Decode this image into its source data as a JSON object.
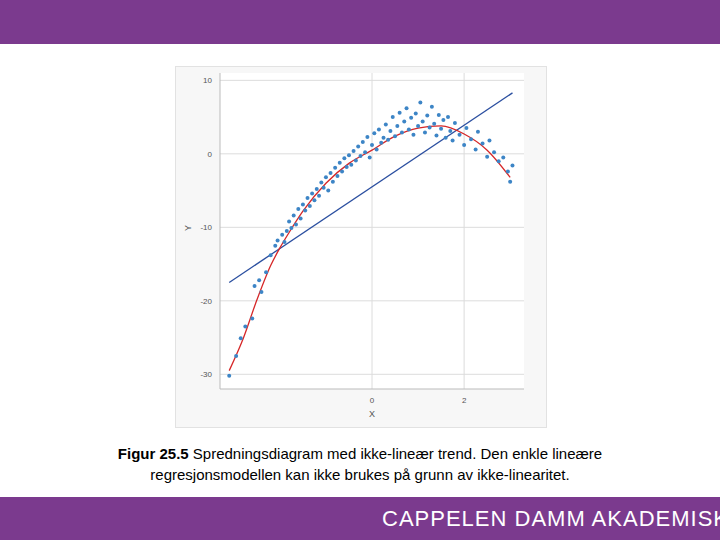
{
  "caption": {
    "label": "Figur 25.5",
    "text": "Spredningsdiagram med ikke-lineær trend. Den enkle lineære regresjonsmodellen kan ikke brukes på grunn av ikke-linearitet."
  },
  "footer": "CAPPELEN DAMM AKADEMISK",
  "chart_data": {
    "type": "scatter",
    "x_label": "X",
    "y_label": "Y",
    "xlim": [
      -3.3,
      3.3
    ],
    "ylim": [
      -32,
      11
    ],
    "xticks": [
      0,
      2
    ],
    "yticks": [
      -30,
      -20,
      -10,
      0,
      10
    ],
    "grid": true,
    "series": [
      {
        "type": "scatter",
        "color": "#3d85c6",
        "marker": "circle",
        "points": [
          [
            -3.1,
            -30.2
          ],
          [
            -2.95,
            -27.5
          ],
          [
            -2.85,
            -25.1
          ],
          [
            -2.75,
            -23.5
          ],
          [
            -2.6,
            -22.4
          ],
          [
            -2.55,
            -18.0
          ],
          [
            -2.45,
            -17.2
          ],
          [
            -2.4,
            -18.8
          ],
          [
            -2.3,
            -16.1
          ],
          [
            -2.2,
            -13.8
          ],
          [
            -2.1,
            -12.5
          ],
          [
            -2.05,
            -11.8
          ],
          [
            -1.95,
            -11.0
          ],
          [
            -1.9,
            -12.0
          ],
          [
            -1.85,
            -10.5
          ],
          [
            -1.8,
            -9.2
          ],
          [
            -1.75,
            -10.1
          ],
          [
            -1.7,
            -8.4
          ],
          [
            -1.65,
            -9.6
          ],
          [
            -1.6,
            -7.5
          ],
          [
            -1.55,
            -8.8
          ],
          [
            -1.5,
            -6.9
          ],
          [
            -1.45,
            -7.7
          ],
          [
            -1.4,
            -6.0
          ],
          [
            -1.35,
            -7.1
          ],
          [
            -1.3,
            -5.4
          ],
          [
            -1.25,
            -6.3
          ],
          [
            -1.2,
            -4.8
          ],
          [
            -1.15,
            -5.7
          ],
          [
            -1.1,
            -3.9
          ],
          [
            -1.05,
            -4.6
          ],
          [
            -1.0,
            -3.2
          ],
          [
            -0.95,
            -5.0
          ],
          [
            -0.9,
            -2.6
          ],
          [
            -0.85,
            -3.8
          ],
          [
            -0.8,
            -1.9
          ],
          [
            -0.75,
            -3.0
          ],
          [
            -0.7,
            -1.2
          ],
          [
            -0.65,
            -2.4
          ],
          [
            -0.6,
            -0.6
          ],
          [
            -0.55,
            -1.8
          ],
          [
            -0.5,
            -0.2
          ],
          [
            -0.45,
            -1.5
          ],
          [
            -0.4,
            0.4
          ],
          [
            -0.35,
            -0.9
          ],
          [
            -0.3,
            1.0
          ],
          [
            -0.25,
            -0.3
          ],
          [
            -0.2,
            1.6
          ],
          [
            -0.15,
            0.2
          ],
          [
            -0.1,
            2.3
          ],
          [
            -0.05,
            -0.5
          ],
          [
            0.0,
            1.2
          ],
          [
            0.05,
            2.8
          ],
          [
            0.1,
            0.6
          ],
          [
            0.15,
            3.3
          ],
          [
            0.2,
            1.5
          ],
          [
            0.25,
            2.2
          ],
          [
            0.3,
            4.0
          ],
          [
            0.35,
            1.9
          ],
          [
            0.4,
            3.1
          ],
          [
            0.45,
            5.0
          ],
          [
            0.5,
            2.4
          ],
          [
            0.55,
            3.8
          ],
          [
            0.6,
            5.6
          ],
          [
            0.65,
            2.9
          ],
          [
            0.7,
            4.4
          ],
          [
            0.75,
            6.2
          ],
          [
            0.8,
            3.3
          ],
          [
            0.85,
            4.9
          ],
          [
            0.9,
            2.6
          ],
          [
            0.95,
            5.5
          ],
          [
            1.0,
            3.8
          ],
          [
            1.05,
            7.0
          ],
          [
            1.1,
            4.4
          ],
          [
            1.15,
            2.9
          ],
          [
            1.2,
            5.2
          ],
          [
            1.25,
            3.6
          ],
          [
            1.3,
            6.4
          ],
          [
            1.35,
            4.1
          ],
          [
            1.4,
            2.5
          ],
          [
            1.45,
            5.3
          ],
          [
            1.5,
            3.4
          ],
          [
            1.55,
            4.6
          ],
          [
            1.6,
            2.2
          ],
          [
            1.65,
            5.0
          ],
          [
            1.7,
            3.1
          ],
          [
            1.75,
            1.8
          ],
          [
            1.8,
            4.2
          ],
          [
            1.9,
            2.6
          ],
          [
            2.0,
            1.2
          ],
          [
            2.05,
            3.5
          ],
          [
            2.15,
            2.0
          ],
          [
            2.25,
            0.6
          ],
          [
            2.3,
            3.0
          ],
          [
            2.4,
            1.4
          ],
          [
            2.5,
            -0.4
          ],
          [
            2.55,
            1.8
          ],
          [
            2.65,
            0.2
          ],
          [
            2.75,
            -1.0
          ],
          [
            2.85,
            -0.5
          ],
          [
            2.95,
            -2.4
          ],
          [
            3.0,
            -3.8
          ],
          [
            3.05,
            -1.6
          ]
        ]
      },
      {
        "type": "line",
        "color": "#2b4fa0",
        "line_style": "solid",
        "points": [
          [
            -3.1,
            -17.5
          ],
          [
            3.05,
            8.3
          ]
        ]
      },
      {
        "type": "line",
        "color": "#d62728",
        "line_style": "solid",
        "points": [
          [
            -3.1,
            -29.5
          ],
          [
            -2.8,
            -25.2
          ],
          [
            -2.5,
            -19.9
          ],
          [
            -2.2,
            -15.2
          ],
          [
            -2.0,
            -12.8
          ],
          [
            -1.8,
            -10.7
          ],
          [
            -1.5,
            -7.8
          ],
          [
            -1.0,
            -4.0
          ],
          [
            -0.5,
            -1.3
          ],
          [
            0.0,
            0.5
          ],
          [
            0.5,
            2.4
          ],
          [
            1.0,
            3.5
          ],
          [
            1.5,
            3.8
          ],
          [
            2.0,
            2.7
          ],
          [
            2.5,
            0.5
          ],
          [
            3.0,
            -3.2
          ]
        ]
      }
    ]
  }
}
